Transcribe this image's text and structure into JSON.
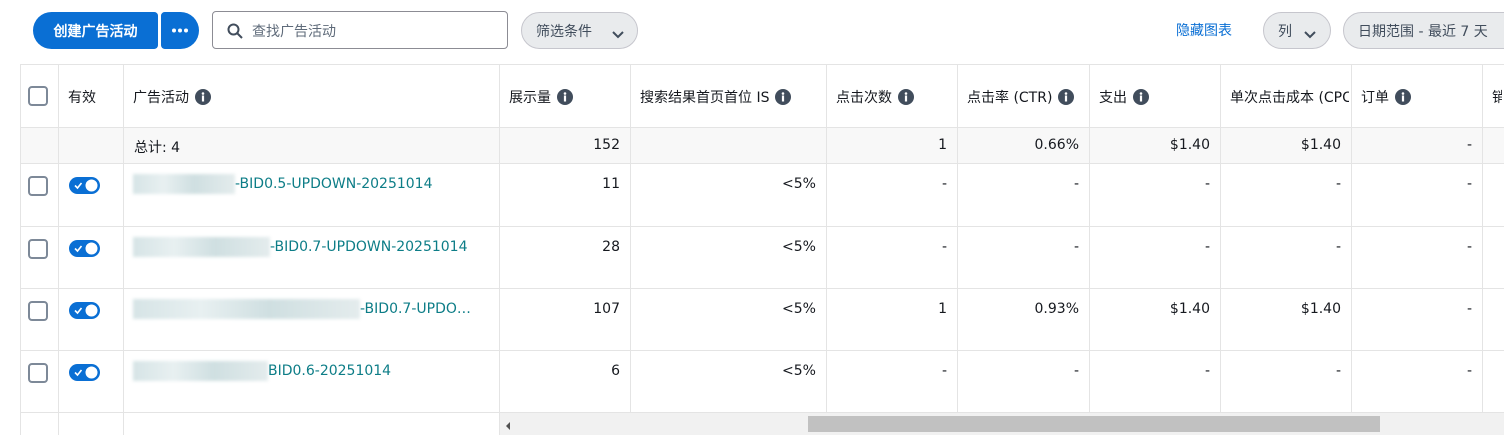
{
  "toolbar": {
    "create_button": "创建广告活动",
    "search_placeholder": "查找广告活动",
    "filter_button": "筛选条件",
    "hide_chart": "隐藏图表",
    "columns_button": "列",
    "date_range": "日期范围 - 最近 7 天"
  },
  "table": {
    "headers": [
      "有效",
      "广告活动",
      "展示量",
      "搜索结果首页首位 IS",
      "点击次数",
      "点击率 (CTR)",
      "支出",
      "单次点击成本 (CPC",
      "订单",
      "销"
    ],
    "total_label": "总计: 4",
    "totals": [
      "152",
      null,
      "1",
      "0.66%",
      "$1.40",
      "$1.40",
      "-"
    ],
    "rows": [
      {
        "name": "-BID0.5-UPDOWN-20251014",
        "cells": [
          "11",
          "<5%",
          "-",
          "-",
          "-",
          "-",
          "-"
        ]
      },
      {
        "name": "-BID0.7-UPDOWN-20251014",
        "cells": [
          "28",
          "<5%",
          "-",
          "-",
          "-",
          "-",
          "-"
        ]
      },
      {
        "name": "-BID0.7-UPDO…",
        "cells": [
          "107",
          "<5%",
          "1",
          "0.93%",
          "$1.40",
          "$1.40",
          "-"
        ]
      },
      {
        "name": "BID0.6-20251014",
        "cells": [
          "6",
          "<5%",
          "-",
          "-",
          "-",
          "-",
          "-"
        ]
      }
    ]
  }
}
